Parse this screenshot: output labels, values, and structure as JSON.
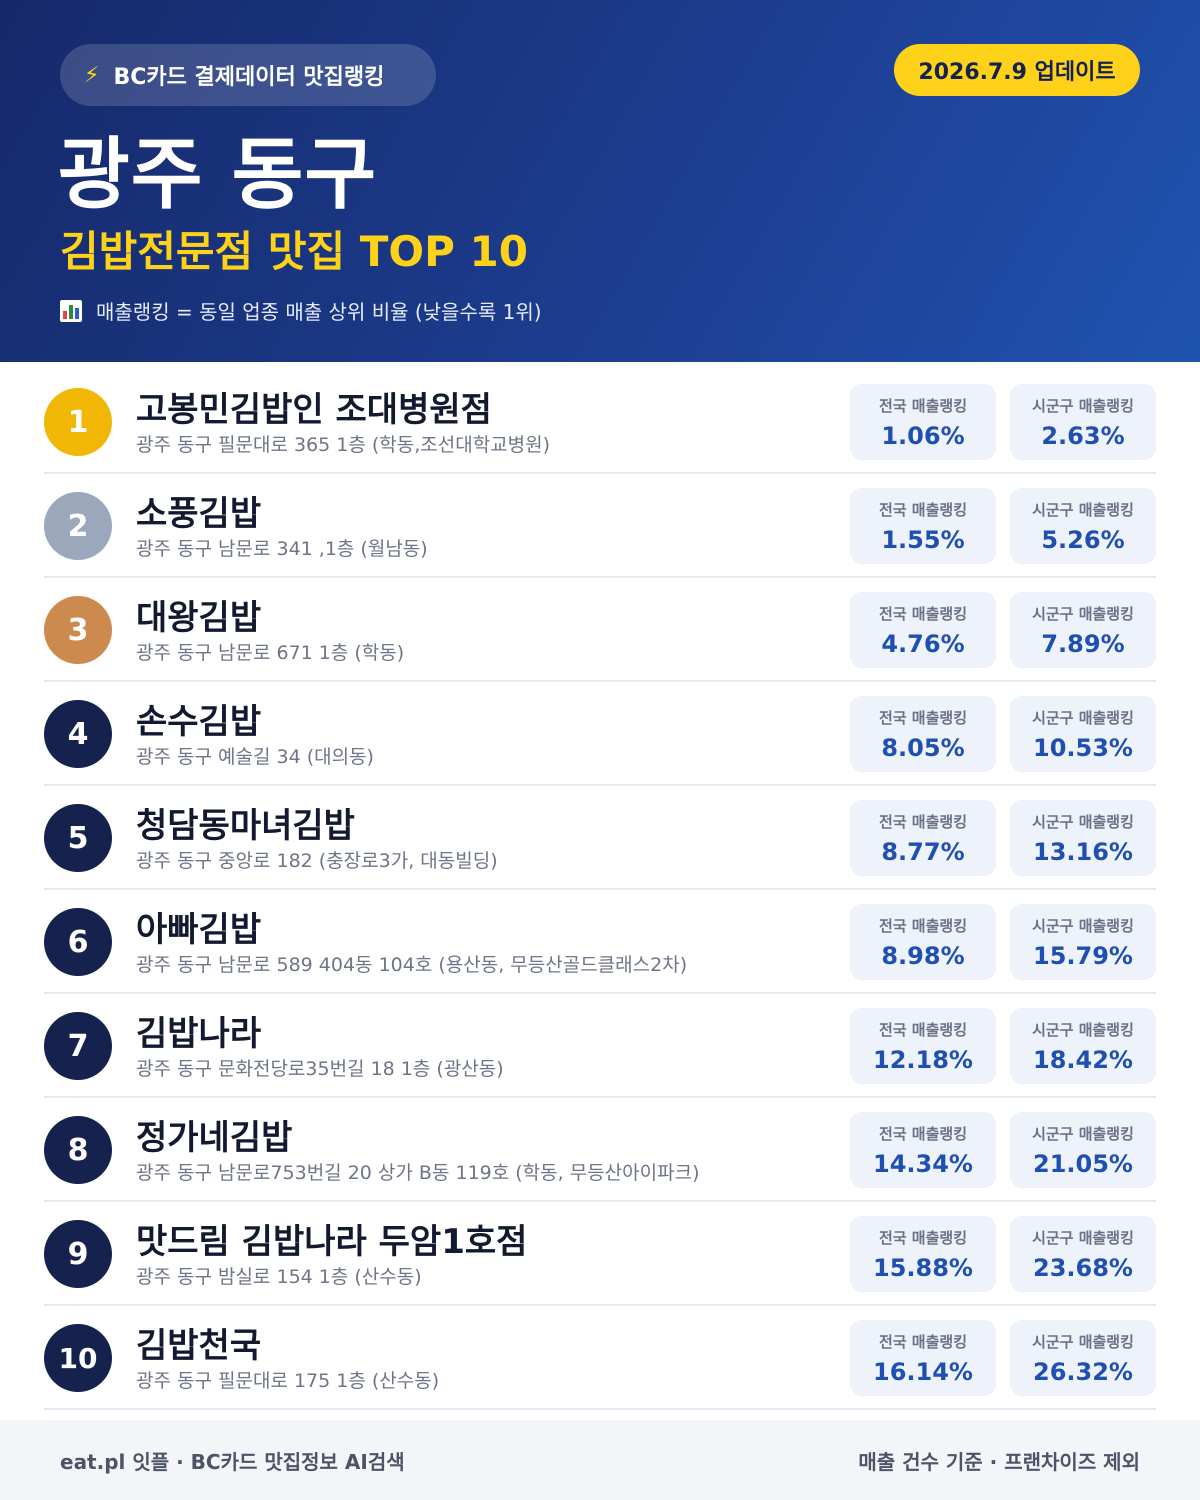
{
  "header": {
    "source_pill": "BC카드 결제데이터 맛집랭킹",
    "update_badge": "2026.7.9 업데이트",
    "region": "광주 동구",
    "category": "김밥전문점 맛집 TOP 10",
    "legend": "매출랭킹 = 동일 업종 매출 상위 비율 (낮을수록 1위)",
    "colors": {
      "background": "#1c3d8f",
      "accent": "#ffd21a"
    },
    "icons": {
      "source": "lightning-icon",
      "legend": "bar-chart-icon"
    }
  },
  "stat_labels": {
    "national": "전국 매출랭킹",
    "local": "시군구 매출랭킹"
  },
  "restaurants": [
    {
      "rank": "1",
      "name": "고봉민김밥인 조대병원점",
      "address": "광주 동구 필문대로 365 1층 (학동,조선대학교병원)",
      "national": "1.06%",
      "local": "2.63%"
    },
    {
      "rank": "2",
      "name": "소풍김밥",
      "address": "광주 동구 남문로 341 ,1층 (월남동)",
      "national": "1.55%",
      "local": "5.26%"
    },
    {
      "rank": "3",
      "name": "대왕김밥",
      "address": "광주 동구 남문로 671 1층 (학동)",
      "national": "4.76%",
      "local": "7.89%"
    },
    {
      "rank": "4",
      "name": "손수김밥",
      "address": "광주 동구 예술길 34 (대의동)",
      "national": "8.05%",
      "local": "10.53%"
    },
    {
      "rank": "5",
      "name": "청담동마녀김밥",
      "address": "광주 동구 중앙로 182 (충장로3가, 대동빌딩)",
      "national": "8.77%",
      "local": "13.16%"
    },
    {
      "rank": "6",
      "name": "아빠김밥",
      "address": "광주 동구 남문로 589 404동 104호 (용산동, 무등산골드클래스2차)",
      "national": "8.98%",
      "local": "15.79%"
    },
    {
      "rank": "7",
      "name": "김밥나라",
      "address": "광주 동구 문화전당로35번길 18 1층 (광산동)",
      "national": "12.18%",
      "local": "18.42%"
    },
    {
      "rank": "8",
      "name": "정가네김밥",
      "address": "광주 동구 남문로753번길 20 상가 B동 119호 (학동, 무등산아이파크)",
      "national": "14.34%",
      "local": "21.05%"
    },
    {
      "rank": "9",
      "name": "맛드림 김밥나라 두암1호점",
      "address": "광주 동구 밤실로 154 1층 (산수동)",
      "national": "15.88%",
      "local": "23.68%"
    },
    {
      "rank": "10",
      "name": "김밥천국",
      "address": "광주 동구 필문대로 175 1층 (산수동)",
      "national": "16.14%",
      "local": "26.32%"
    }
  ],
  "footer": {
    "left": "eat.pl 잇플 · BC카드 맛집정보 AI검색",
    "right": "매출 건수 기준 · 프랜차이즈 제외"
  }
}
